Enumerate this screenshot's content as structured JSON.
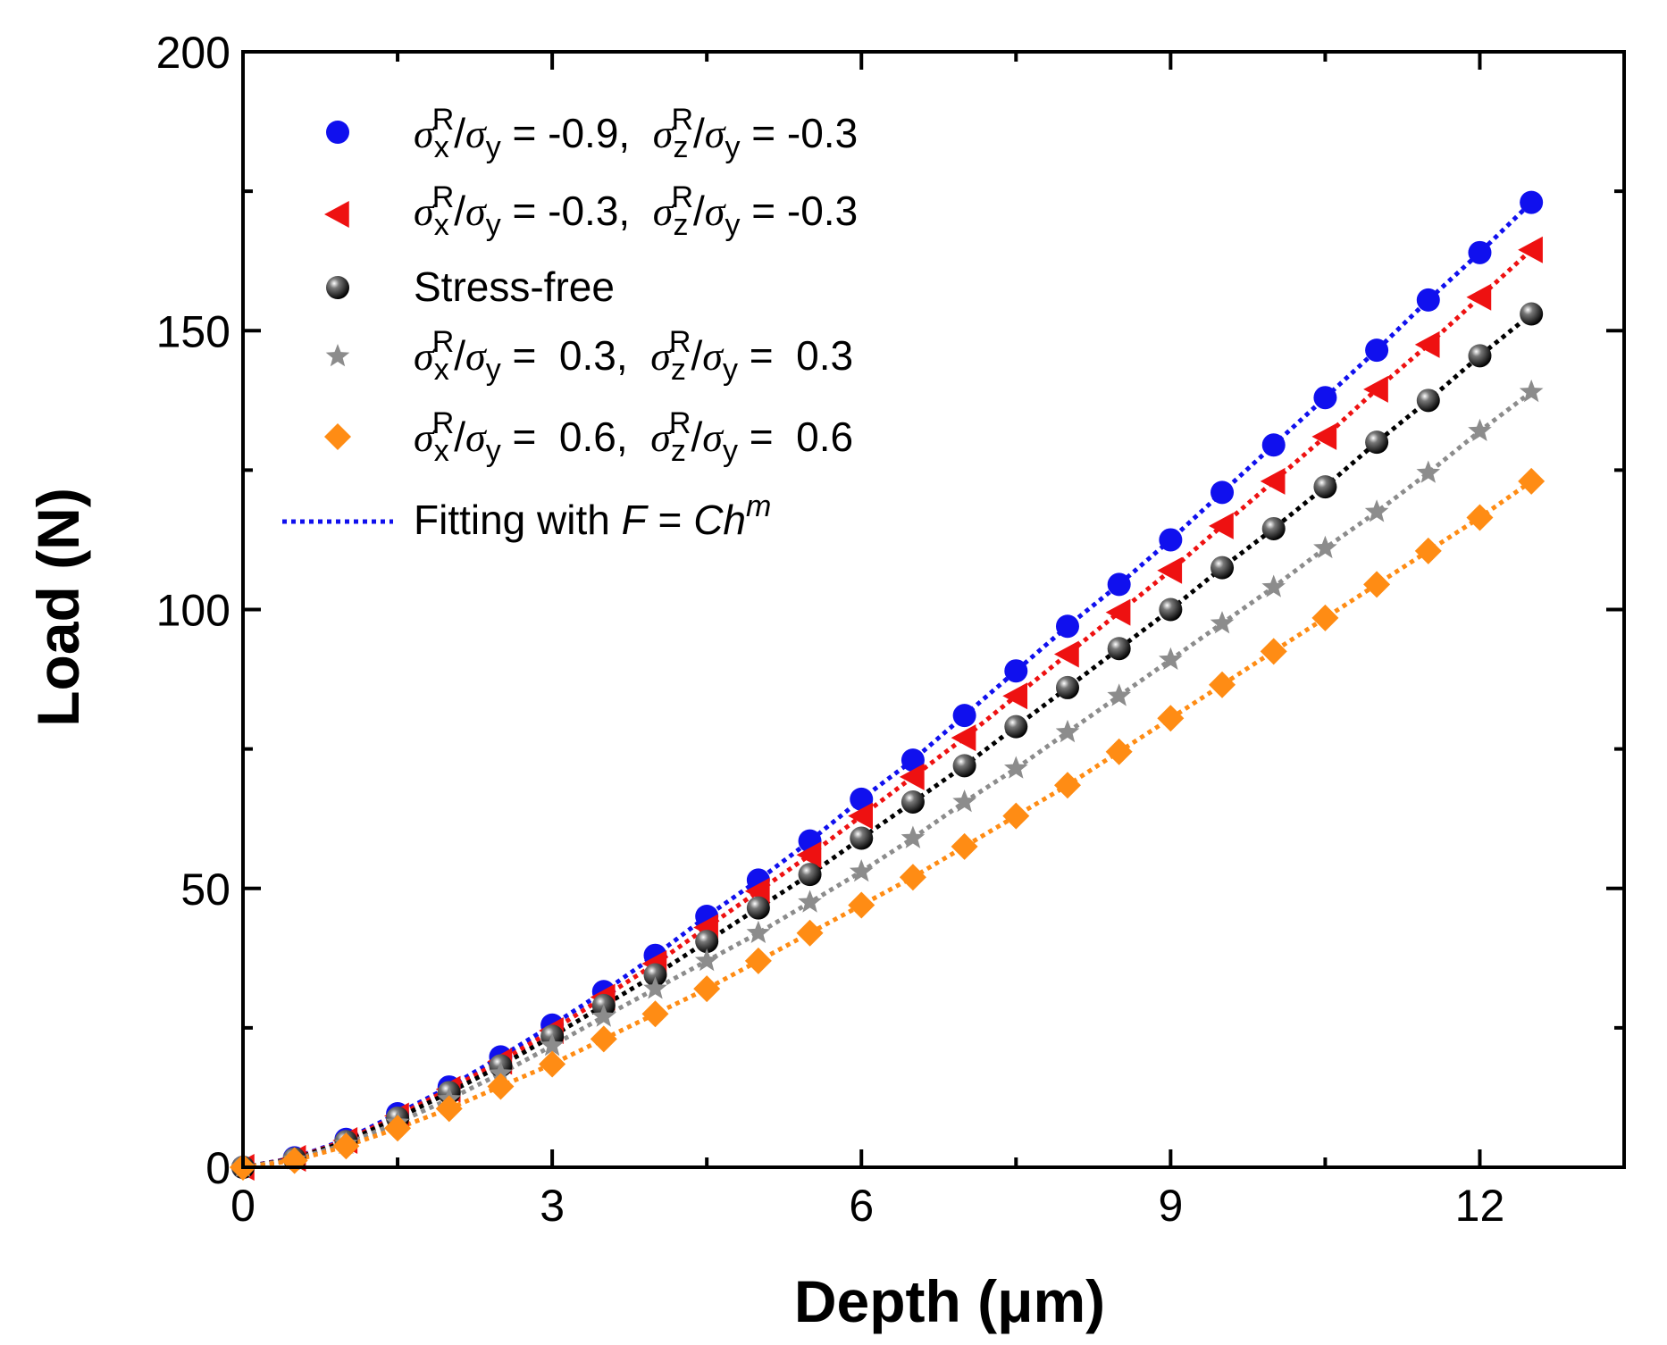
{
  "chart_data": {
    "type": "scatter",
    "xlabel": "Depth (μm)",
    "ylabel": "Load (N)",
    "xlim": [
      0,
      13.4
    ],
    "ylim": [
      0,
      200
    ],
    "xticks": [
      0,
      3,
      6,
      9,
      12
    ],
    "yticks": [
      0,
      50,
      100,
      150,
      200
    ],
    "x": [
      0,
      0.5,
      1,
      1.5,
      2,
      2.5,
      3,
      3.5,
      4,
      4.5,
      5,
      5.5,
      6,
      6.5,
      7,
      7.5,
      8,
      8.5,
      9,
      9.5,
      10,
      10.5,
      11,
      11.5,
      12,
      12.5
    ],
    "legend_position": "top-left",
    "series": [
      {
        "name": "σxR/σy = -0.9, σzR/σy = -0.3",
        "label_parts": {
          "s1": "σ",
          "sub1": "x",
          "sup1": "R",
          "mid": "/",
          "s2": "σ",
          "sub2": "y",
          "val1": " = -0.9,  ",
          "s3": "σ",
          "sub3": "z",
          "sup3": "R",
          "mid2": "/",
          "s4": "σ",
          "sub4": "y",
          "val2": " = -0.3"
        },
        "marker": "circle",
        "color": "#1010ee",
        "values": [
          0,
          1.7,
          5,
          9.6,
          14.4,
          19.8,
          25.5,
          31.5,
          38,
          45,
          51.5,
          58.5,
          66,
          73,
          81,
          89,
          97,
          104.5,
          112.5,
          121,
          129.5,
          138,
          146.5,
          155.5,
          164,
          173
        ]
      },
      {
        "name": "σxR/σy = -0.3, σzR/σy = -0.3",
        "label_parts": {
          "s1": "σ",
          "sub1": "x",
          "sup1": "R",
          "mid": "/",
          "s2": "σ",
          "sub2": "y",
          "val1": " = -0.3,  ",
          "s3": "σ",
          "sub3": "z",
          "sup3": "R",
          "mid2": "/",
          "s4": "σ",
          "sub4": "y",
          "val2": " = -0.3"
        },
        "marker": "triangle-left",
        "color": "#ee1111",
        "values": [
          0,
          1.6,
          4.8,
          9.2,
          14,
          19,
          24.5,
          30.5,
          36.5,
          43,
          49.5,
          56,
          63,
          70,
          77,
          84.5,
          92,
          99.5,
          107,
          115,
          123,
          131,
          139.5,
          147.5,
          156,
          164.5
        ]
      },
      {
        "name": "Stress-free",
        "label": "Stress-free",
        "marker": "sphere",
        "color": "#000000",
        "values": [
          0,
          1.5,
          4.6,
          8.8,
          13.4,
          18.2,
          23.5,
          29,
          34.5,
          40.5,
          46.5,
          52.5,
          59,
          65.5,
          72,
          79,
          86,
          93,
          100,
          107.5,
          114.5,
          122,
          130,
          137.5,
          145.5,
          153
        ]
      },
      {
        "name": "σxR/σy = 0.3, σzR/σy = 0.3",
        "label_parts": {
          "s1": "σ",
          "sub1": "x",
          "sup1": "R",
          "mid": "/",
          "s2": "σ",
          "sub2": "y",
          "val1": " =  0.3,  ",
          "s3": "σ",
          "sub3": "z",
          "sup3": "R",
          "mid2": "/",
          "s4": "σ",
          "sub4": "y",
          "val2": " =  0.3"
        },
        "marker": "star",
        "color": "#8c8c8c",
        "values": [
          0,
          1.4,
          4.2,
          8,
          12.2,
          16.8,
          21.8,
          27,
          32,
          37,
          42,
          47.5,
          53,
          59,
          65.5,
          71.5,
          78,
          84.5,
          91,
          97.5,
          104,
          111,
          117.5,
          124.5,
          132,
          139
        ]
      },
      {
        "name": "σxR/σy = 0.6, σzR/σy = 0.6",
        "label_parts": {
          "s1": "σ",
          "sub1": "x",
          "sup1": "R",
          "mid": "/",
          "s2": "σ",
          "sub2": "y",
          "val1": " =  0.6,  ",
          "s3": "σ",
          "sub3": "z",
          "sup3": "R",
          "mid2": "/",
          "s4": "σ",
          "sub4": "y",
          "val2": " =  0.6"
        },
        "marker": "diamond",
        "color": "#ff8c14",
        "values": [
          0,
          1.2,
          3.8,
          7,
          10.5,
          14.5,
          18.5,
          23,
          27.5,
          32,
          37,
          42,
          47,
          52,
          57.5,
          63,
          68.5,
          74.5,
          80.5,
          86.5,
          92.5,
          98.5,
          104.5,
          110.5,
          116.5,
          123
        ]
      }
    ],
    "fit_legend": {
      "name": "Fitting with F = Ch^m",
      "text": "Fitting with ",
      "F": "F",
      "eq": " = ",
      "C": "C",
      "h": "h",
      "m": "m",
      "color": "#1010ee",
      "line_style": "dotted"
    }
  }
}
